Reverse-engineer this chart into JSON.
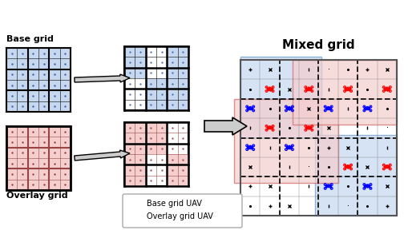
{
  "title": "Mixed grid",
  "base_grid_label": "Base grid",
  "overlay_grid_label": "Overlay grid",
  "legend_base_label": "Base grid UAV",
  "legend_overlay_label": "Overlay grid UAV",
  "blue_color": "#aec6e8",
  "blue_dark": "#6699cc",
  "red_color": "#f4b8b8",
  "red_dark": "#cc6666",
  "blue_fill": "#c5d8f0",
  "red_fill": "#f5cece",
  "bg_white": "#ffffff",
  "grid_n": 6,
  "mixed_n": 8
}
